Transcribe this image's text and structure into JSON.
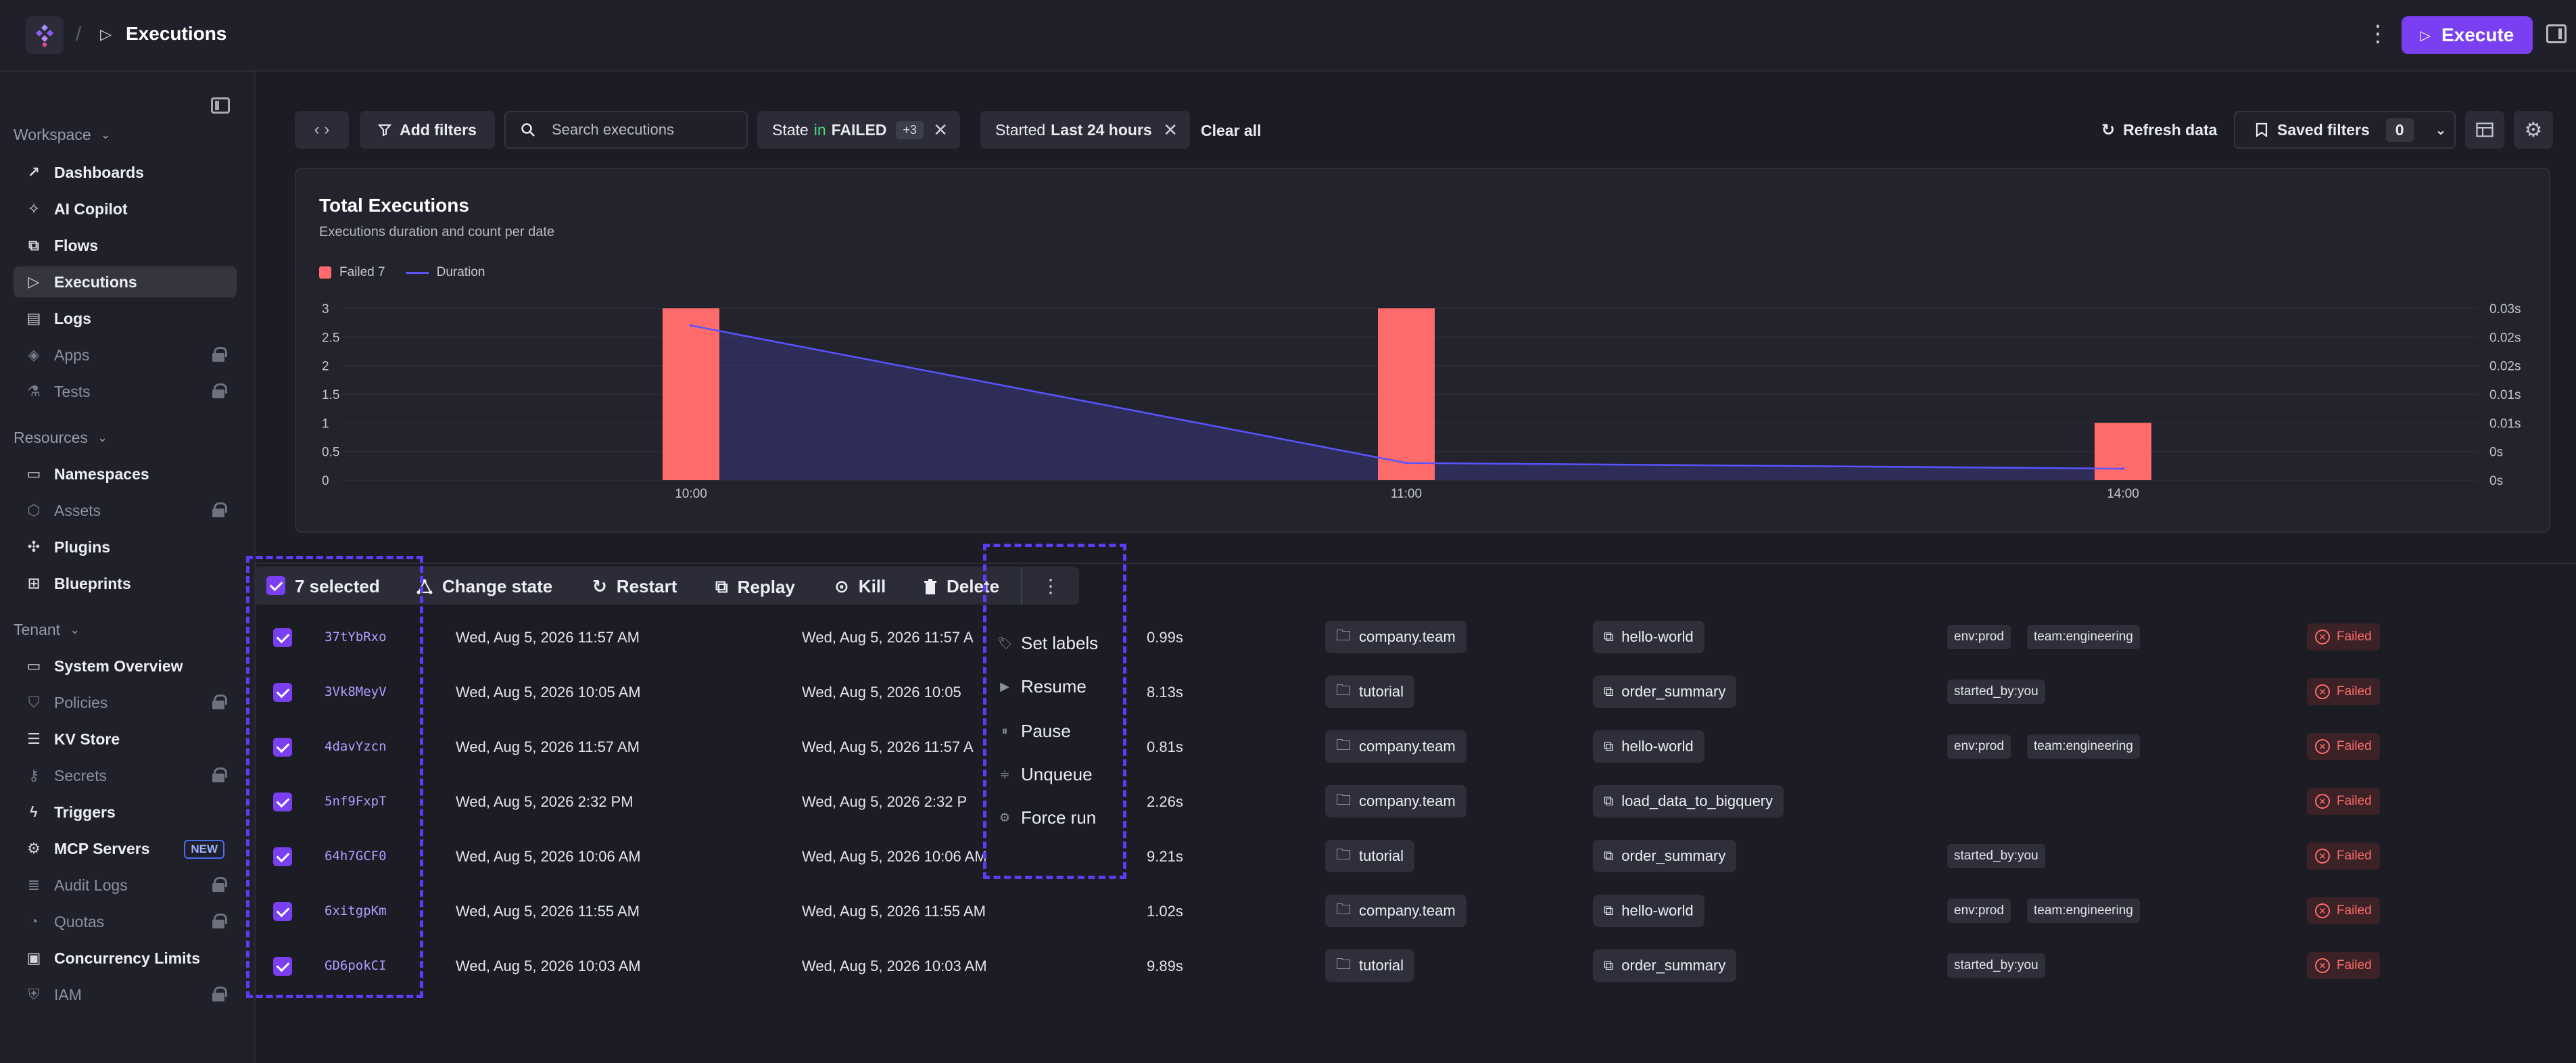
{
  "topbar": {
    "breadcrumb_sep": "/",
    "title": "Executions",
    "execute_label": "Execute"
  },
  "sidebar": {
    "sections": [
      {
        "label": "Workspace"
      },
      {
        "label": "Resources"
      },
      {
        "label": "Tenant"
      }
    ],
    "items": [
      {
        "label": "Dashboards",
        "icon": "chart-line-icon"
      },
      {
        "label": "AI Copilot",
        "icon": "sparkle-icon"
      },
      {
        "label": "Flows",
        "icon": "flow-icon"
      },
      {
        "label": "Executions",
        "icon": "play-icon",
        "active": true
      },
      {
        "label": "Logs",
        "icon": "file-icon"
      },
      {
        "label": "Apps",
        "icon": "layers-icon",
        "locked": true
      },
      {
        "label": "Tests",
        "icon": "flask-icon",
        "locked": true
      },
      {
        "label": "Namespaces",
        "icon": "folder-icon"
      },
      {
        "label": "Assets",
        "icon": "box-icon",
        "locked": true
      },
      {
        "label": "Plugins",
        "icon": "puzzle-icon"
      },
      {
        "label": "Blueprints",
        "icon": "blueprint-icon"
      },
      {
        "label": "System Overview",
        "icon": "monitor-icon"
      },
      {
        "label": "Policies",
        "icon": "shield-icon",
        "locked": true
      },
      {
        "label": "KV Store",
        "icon": "database-icon"
      },
      {
        "label": "Secrets",
        "icon": "key-icon",
        "locked": true
      },
      {
        "label": "Triggers",
        "icon": "bolt-icon"
      },
      {
        "label": "MCP Servers",
        "icon": "mcp-icon",
        "badge": "NEW"
      },
      {
        "label": "Audit Logs",
        "icon": "list-icon",
        "locked": true
      },
      {
        "label": "Quotas",
        "icon": "gauge-icon",
        "locked": true
      },
      {
        "label": "Concurrency Limits",
        "icon": "lock-icon"
      },
      {
        "label": "IAM",
        "icon": "user-shield-icon",
        "locked": true
      }
    ]
  },
  "filters": {
    "add_filters": "Add filters",
    "search_placeholder": "Search executions",
    "state_key": "State",
    "state_op": "in",
    "state_value": "FAILED",
    "state_more": "+3",
    "started_key": "Started",
    "started_value": "Last 24 hours",
    "clear_all": "Clear all",
    "refresh": "Refresh data",
    "saved_filters": "Saved filters",
    "saved_count": "0"
  },
  "chart": {
    "title": "Total Executions",
    "subtitle": "Executions duration and count per date",
    "legend": [
      "Failed 7",
      "Duration"
    ]
  },
  "chart_data": {
    "type": "bar",
    "categories": [
      "10:00",
      "11:00",
      "14:00"
    ],
    "series": [
      {
        "name": "Failed 7",
        "type": "bar",
        "values": [
          3,
          3,
          1
        ]
      },
      {
        "name": "Duration",
        "type": "line",
        "values": [
          0.027,
          0.003,
          0.002
        ]
      }
    ],
    "y_ticks": [
      "0",
      "0.5",
      "1",
      "1.5",
      "2",
      "2.5",
      "3"
    ],
    "y2_ticks": [
      "0s",
      "0s",
      "0.01s",
      "0.01s",
      "0.02s",
      "0.02s",
      "0.03s"
    ],
    "ylim": [
      0,
      3
    ],
    "colors": {
      "bar": "#ff6b6b",
      "line": "#5a54ff"
    }
  },
  "bulk": {
    "selected": "7 selected",
    "actions": [
      "Change state",
      "Restart",
      "Replay",
      "Kill",
      "Delete"
    ]
  },
  "menu": {
    "items": [
      "Set labels",
      "Resume",
      "Pause",
      "Unqueue",
      "Force run"
    ]
  },
  "rows": [
    {
      "id": "37tYbRxo",
      "start": "Wed, Aug 5, 2026 11:57 AM",
      "end": "Wed, Aug 5, 2026 11:57 A",
      "duration": "0.99s",
      "namespace": "company.team",
      "flow": "hello-world",
      "labels": [
        "env:prod",
        "team:engineering"
      ],
      "state": "Failed"
    },
    {
      "id": "3Vk8MeyV",
      "start": "Wed, Aug 5, 2026 10:05 AM",
      "end": "Wed, Aug 5, 2026 10:05",
      "duration": "8.13s",
      "namespace": "tutorial",
      "flow": "order_summary",
      "labels": [
        "started_by:you"
      ],
      "state": "Failed"
    },
    {
      "id": "4davYzcn",
      "start": "Wed, Aug 5, 2026 11:57 AM",
      "end": "Wed, Aug 5, 2026 11:57 A",
      "duration": "0.81s",
      "namespace": "company.team",
      "flow": "hello-world",
      "labels": [
        "env:prod",
        "team:engineering"
      ],
      "state": "Failed"
    },
    {
      "id": "5nf9FxpT",
      "start": "Wed, Aug 5, 2026 2:32 PM",
      "end": "Wed, Aug 5, 2026 2:32 P",
      "duration": "2.26s",
      "namespace": "company.team",
      "flow": "load_data_to_bigquery",
      "labels": [],
      "state": "Failed"
    },
    {
      "id": "64h7GCF0",
      "start": "Wed, Aug 5, 2026 10:06 AM",
      "end": "Wed, Aug 5, 2026 10:06 AM",
      "duration": "9.21s",
      "namespace": "tutorial",
      "flow": "order_summary",
      "labels": [
        "started_by:you"
      ],
      "state": "Failed"
    },
    {
      "id": "6xitgpKm",
      "start": "Wed, Aug 5, 2026 11:55 AM",
      "end": "Wed, Aug 5, 2026 11:55 AM",
      "duration": "1.02s",
      "namespace": "company.team",
      "flow": "hello-world",
      "labels": [
        "env:prod",
        "team:engineering"
      ],
      "state": "Failed"
    },
    {
      "id": "GD6pokCI",
      "start": "Wed, Aug 5, 2026 10:03 AM",
      "end": "Wed, Aug 5, 2026 10:03 AM",
      "duration": "9.89s",
      "namespace": "tutorial",
      "flow": "order_summary",
      "labels": [
        "started_by:you"
      ],
      "state": "Failed"
    }
  ]
}
